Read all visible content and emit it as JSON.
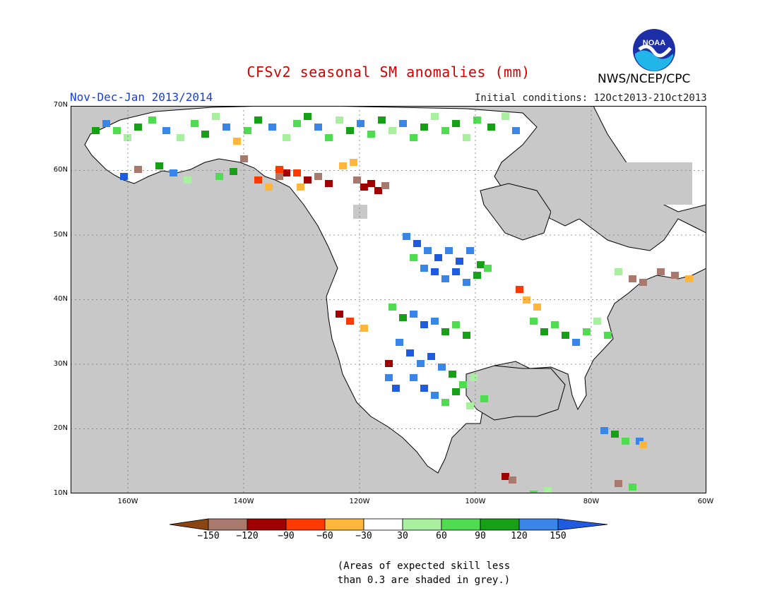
{
  "header": {
    "title": "CFSv2 seasonal SM anomalies (mm)",
    "season": "Nov-Dec-Jan 2013/2014",
    "initial_conditions": "Initial conditions: 12Oct2013-21Oct2013",
    "agency": "NWS/NCEP/CPC",
    "logo_text": "NOAA"
  },
  "map": {
    "lat_labels": [
      "70N",
      "60N",
      "50N",
      "40N",
      "30N",
      "20N",
      "10N"
    ],
    "lon_labels": [
      "160W",
      "140W",
      "120W",
      "100W",
      "80W",
      "60W"
    ],
    "ocean_color": "#c8c8c8",
    "land_color": "#ffffff"
  },
  "legend": {
    "labels": [
      "-150",
      "-120",
      "-90",
      "-60",
      "-30",
      "30",
      "60",
      "90",
      "120",
      "150"
    ],
    "colors": [
      "#8b4513",
      "#a87a6e",
      "#a00000",
      "#ff3a00",
      "#ffb63a",
      "#ffffff",
      "#a8f0a0",
      "#50dc50",
      "#15a015",
      "#3a86e8",
      "#1e5be0"
    ]
  },
  "note": {
    "line1": "(Areas of expected skill less",
    "line2": "than 0.3 are shaded in grey.)"
  }
}
